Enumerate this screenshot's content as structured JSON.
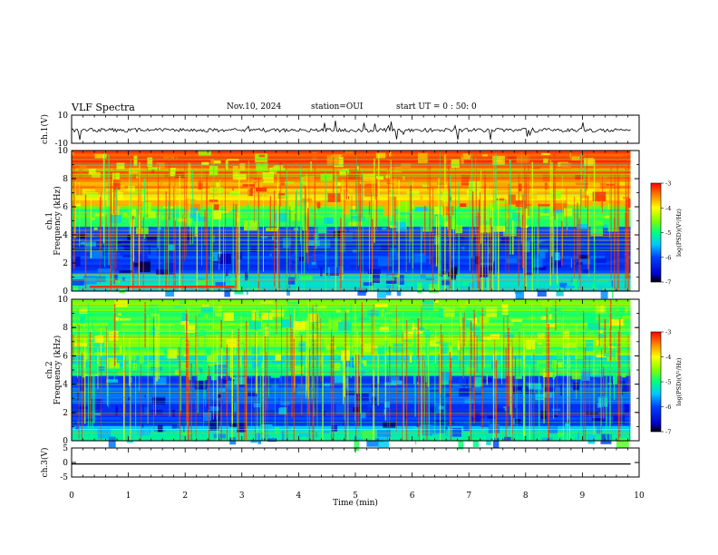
{
  "header": {
    "title": "VLF Spectra",
    "date": "Nov.10, 2024",
    "station": "station=OUI",
    "start_ut": "start UT = 0 : 50: 0"
  },
  "chart_data": [
    {
      "type": "line",
      "panel": "ch1-waveform",
      "ylabel": "ch.1(V)",
      "ylim": [
        -10,
        10
      ],
      "yticks": [
        "10",
        "-10"
      ],
      "signal": "broadband noise around ~0 V with frequent impulsive spikes",
      "grid": false
    },
    {
      "type": "heatmap",
      "panel": "ch1-spectrogram",
      "ylabel": "ch.1 Frequency (kHz)",
      "ylim": [
        0,
        10
      ],
      "yticks": [
        "0",
        "2",
        "4",
        "6",
        "8",
        "10"
      ],
      "colorbar": {
        "label": "log(PSD)(V²/Hz)",
        "range": [
          -7,
          -3
        ],
        "ticks": [
          "-3",
          "-4",
          "-5",
          "-6",
          "-7"
        ],
        "colormap": "jet"
      }
    },
    {
      "type": "heatmap",
      "panel": "ch2-spectrogram",
      "ylabel": "ch.2 Frequency (kHz)",
      "ylim": [
        0,
        10
      ],
      "yticks": [
        "0",
        "2",
        "4",
        "6",
        "8",
        "10"
      ],
      "colorbar": {
        "label": "log(PSD)(V²/Hz)",
        "range": [
          -7,
          -3
        ],
        "ticks": [
          "-3",
          "-4",
          "-5",
          "-6",
          "-7"
        ],
        "colormap": "jet"
      }
    },
    {
      "type": "line",
      "panel": "ch3-waveform",
      "ylabel": "ch.3(V)",
      "ylim": [
        -5,
        5
      ],
      "yticks": [
        "5",
        "0",
        "-5"
      ],
      "constant_value": -0.5,
      "grid": false
    }
  ],
  "x_axis": {
    "label": "Time (min)",
    "range": [
      0,
      10
    ],
    "ticks": [
      "0",
      "1",
      "2",
      "3",
      "4",
      "5",
      "6",
      "7",
      "8",
      "9",
      "10"
    ],
    "data_end": 9.85
  }
}
